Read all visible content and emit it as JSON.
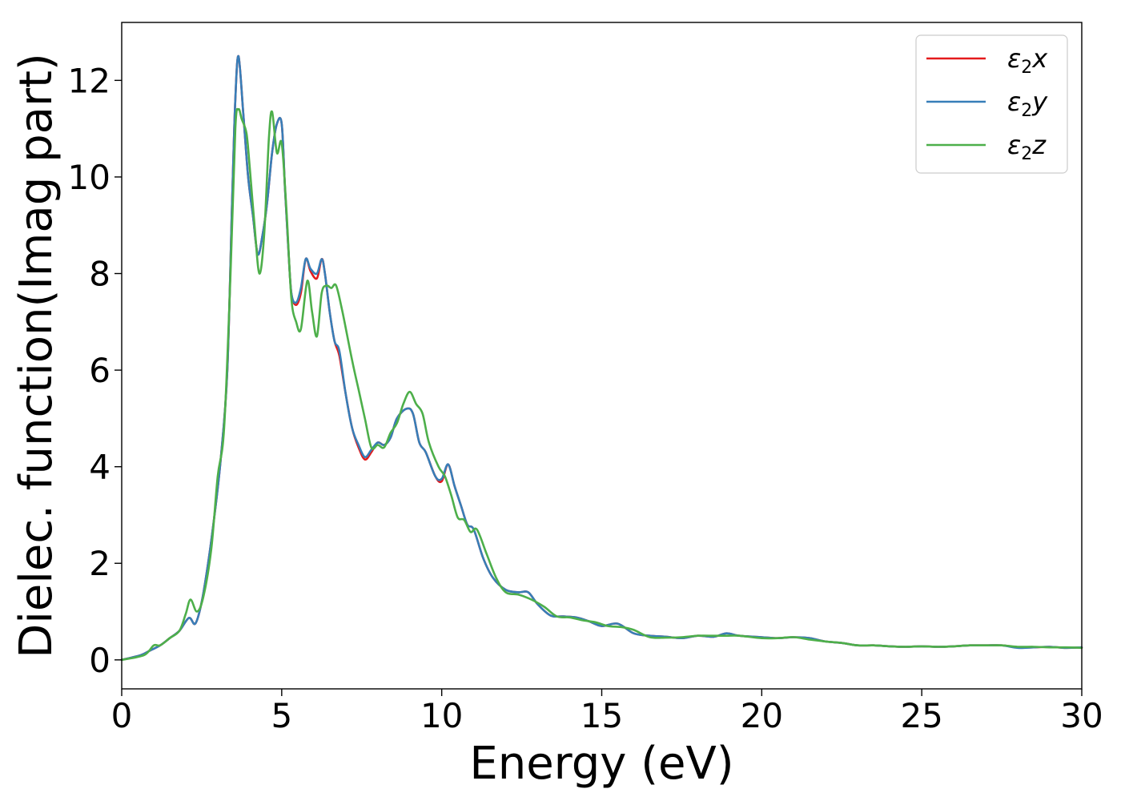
{
  "chart_data": {
    "type": "line",
    "title": "",
    "xlabel": "Energy (eV)",
    "ylabel": "Dielec. function(Imag part)",
    "xlim": [
      0,
      30
    ],
    "ylim": [
      -0.6,
      13.2
    ],
    "xticks": [
      0,
      5,
      10,
      15,
      20,
      25,
      30
    ],
    "yticks": [
      0,
      2,
      4,
      6,
      8,
      10,
      12
    ],
    "grid": false,
    "legend_position": "top-right",
    "series": [
      {
        "name": "ε₂x",
        "legend_base": "ε",
        "legend_sub": "2",
        "legend_suffix": "x",
        "color": "#e41a1c",
        "x": [
          0,
          0.6,
          0.9,
          1.2,
          1.5,
          1.8,
          2.1,
          2.3,
          2.5,
          2.7,
          2.9,
          3.1,
          3.3,
          3.45,
          3.55,
          3.65,
          3.8,
          3.95,
          4.1,
          4.25,
          4.4,
          4.55,
          4.7,
          4.85,
          5.0,
          5.1,
          5.2,
          5.3,
          5.45,
          5.6,
          5.75,
          5.9,
          6.1,
          6.25,
          6.35,
          6.5,
          6.65,
          6.8,
          7.0,
          7.2,
          7.4,
          7.6,
          7.8,
          8.0,
          8.2,
          8.4,
          8.6,
          8.9,
          9.1,
          9.3,
          9.5,
          9.8,
          10.0,
          10.2,
          10.4,
          10.6,
          10.8,
          11.0,
          11.3,
          11.6,
          12.0,
          12.4,
          12.7,
          13.0,
          13.4,
          13.8,
          14.2,
          14.6,
          15.0,
          15.5,
          16.0,
          16.5,
          17.0,
          17.5,
          18.0,
          18.5,
          18.9,
          19.3,
          20.0,
          20.5,
          21.0,
          21.5,
          22.0,
          22.5,
          23.0,
          23.5,
          24.0,
          24.5,
          25.0,
          25.5,
          26.0,
          26.5,
          27.0,
          27.5,
          28.0,
          28.5,
          29.0,
          29.5,
          30.0
        ],
        "values": [
          0.0,
          0.1,
          0.2,
          0.3,
          0.45,
          0.6,
          0.87,
          0.75,
          1.2,
          2.0,
          3.0,
          4.2,
          6.0,
          9.5,
          11.6,
          12.5,
          11.3,
          10.0,
          9.2,
          8.4,
          8.8,
          9.5,
          10.5,
          11.1,
          11.1,
          9.8,
          8.6,
          7.6,
          7.35,
          7.6,
          8.3,
          8.05,
          7.9,
          8.3,
          8.0,
          7.2,
          6.6,
          6.3,
          5.5,
          4.8,
          4.4,
          4.15,
          4.3,
          4.5,
          4.45,
          4.6,
          5.0,
          5.2,
          5.1,
          4.5,
          4.3,
          3.8,
          3.7,
          4.05,
          3.6,
          3.2,
          2.8,
          2.7,
          2.1,
          1.7,
          1.45,
          1.4,
          1.4,
          1.15,
          0.92,
          0.9,
          0.88,
          0.8,
          0.7,
          0.75,
          0.55,
          0.5,
          0.48,
          0.45,
          0.5,
          0.48,
          0.55,
          0.5,
          0.47,
          0.45,
          0.47,
          0.45,
          0.38,
          0.35,
          0.3,
          0.3,
          0.28,
          0.27,
          0.28,
          0.27,
          0.28,
          0.3,
          0.3,
          0.3,
          0.26,
          0.26,
          0.27,
          0.25,
          0.26
        ]
      },
      {
        "name": "ε₂y",
        "legend_base": "ε",
        "legend_sub": "2",
        "legend_suffix": "y",
        "color": "#377eb8",
        "x": [
          0,
          0.6,
          0.9,
          1.2,
          1.5,
          1.8,
          2.1,
          2.3,
          2.5,
          2.7,
          2.9,
          3.1,
          3.3,
          3.45,
          3.55,
          3.65,
          3.8,
          3.95,
          4.1,
          4.25,
          4.4,
          4.55,
          4.7,
          4.85,
          5.0,
          5.1,
          5.2,
          5.3,
          5.45,
          5.6,
          5.75,
          5.9,
          6.1,
          6.25,
          6.35,
          6.5,
          6.65,
          6.8,
          7.0,
          7.2,
          7.4,
          7.6,
          7.8,
          8.0,
          8.2,
          8.4,
          8.6,
          8.9,
          9.1,
          9.3,
          9.5,
          9.8,
          10.0,
          10.2,
          10.4,
          10.6,
          10.8,
          11.0,
          11.3,
          11.6,
          12.0,
          12.4,
          12.7,
          13.0,
          13.4,
          13.8,
          14.2,
          14.6,
          15.0,
          15.5,
          16.0,
          16.5,
          17.0,
          17.5,
          18.0,
          18.5,
          18.9,
          19.3,
          20.0,
          20.5,
          21.0,
          21.5,
          22.0,
          22.5,
          23.0,
          23.5,
          24.0,
          24.5,
          25.0,
          25.5,
          26.0,
          26.5,
          27.0,
          27.5,
          28.0,
          28.5,
          29.0,
          29.5,
          30.0
        ],
        "values": [
          0.0,
          0.1,
          0.2,
          0.3,
          0.45,
          0.6,
          0.87,
          0.75,
          1.2,
          2.0,
          3.0,
          4.2,
          6.0,
          9.5,
          11.6,
          12.5,
          11.3,
          10.0,
          9.2,
          8.4,
          8.8,
          9.5,
          10.5,
          11.1,
          11.1,
          9.8,
          8.6,
          7.6,
          7.4,
          7.7,
          8.3,
          8.1,
          8.0,
          8.3,
          8.0,
          7.2,
          6.6,
          6.4,
          5.5,
          4.8,
          4.45,
          4.2,
          4.35,
          4.5,
          4.45,
          4.6,
          5.0,
          5.2,
          5.1,
          4.5,
          4.3,
          3.8,
          3.75,
          4.05,
          3.6,
          3.2,
          2.8,
          2.7,
          2.1,
          1.7,
          1.45,
          1.4,
          1.4,
          1.15,
          0.92,
          0.9,
          0.88,
          0.8,
          0.7,
          0.75,
          0.55,
          0.5,
          0.48,
          0.45,
          0.5,
          0.48,
          0.55,
          0.5,
          0.47,
          0.45,
          0.47,
          0.45,
          0.38,
          0.35,
          0.3,
          0.3,
          0.28,
          0.27,
          0.28,
          0.27,
          0.28,
          0.3,
          0.3,
          0.3,
          0.25,
          0.26,
          0.27,
          0.25,
          0.26
        ]
      },
      {
        "name": "ε₂z",
        "legend_base": "ε",
        "legend_sub": "2",
        "legend_suffix": "z",
        "color": "#4daf4a",
        "x": [
          0,
          0.7,
          1.0,
          1.2,
          1.5,
          1.8,
          2.0,
          2.15,
          2.35,
          2.55,
          2.8,
          3.0,
          3.2,
          3.4,
          3.55,
          3.65,
          3.75,
          3.9,
          4.0,
          4.15,
          4.3,
          4.45,
          4.6,
          4.7,
          4.85,
          5.0,
          5.15,
          5.3,
          5.45,
          5.6,
          5.8,
          5.95,
          6.1,
          6.25,
          6.4,
          6.55,
          6.7,
          6.9,
          7.2,
          7.4,
          7.6,
          7.8,
          8.0,
          8.2,
          8.4,
          8.6,
          8.8,
          9.0,
          9.2,
          9.4,
          9.6,
          9.9,
          10.1,
          10.3,
          10.5,
          10.7,
          10.9,
          11.1,
          11.4,
          11.7,
          12.0,
          12.4,
          12.8,
          13.2,
          13.6,
          14.0,
          14.4,
          14.8,
          15.2,
          15.6,
          16.0,
          16.5,
          17.0,
          17.5,
          18.0,
          18.5,
          18.9,
          19.3,
          20.0,
          20.5,
          21.0,
          21.5,
          22.0,
          22.5,
          23.0,
          23.5,
          24.0,
          24.5,
          25.0,
          25.5,
          26.0,
          26.5,
          27.0,
          27.5,
          28.0,
          28.5,
          29.0,
          29.5,
          30.0
        ],
        "values": [
          0.0,
          0.1,
          0.3,
          0.3,
          0.45,
          0.6,
          0.95,
          1.25,
          1.0,
          1.3,
          2.3,
          3.8,
          4.8,
          8.0,
          11.0,
          11.4,
          11.2,
          10.9,
          10.2,
          9.0,
          8.0,
          8.8,
          10.8,
          11.35,
          10.5,
          10.7,
          9.3,
          7.5,
          7.0,
          6.85,
          7.85,
          7.2,
          6.7,
          7.6,
          7.75,
          7.7,
          7.75,
          7.2,
          6.2,
          5.6,
          5.0,
          4.4,
          4.45,
          4.4,
          4.7,
          4.9,
          5.3,
          5.55,
          5.3,
          5.1,
          4.5,
          4.0,
          3.8,
          3.4,
          2.95,
          2.9,
          2.65,
          2.7,
          2.2,
          1.7,
          1.4,
          1.35,
          1.25,
          1.1,
          0.9,
          0.88,
          0.82,
          0.78,
          0.7,
          0.68,
          0.62,
          0.47,
          0.46,
          0.47,
          0.5,
          0.5,
          0.5,
          0.5,
          0.45,
          0.45,
          0.47,
          0.42,
          0.38,
          0.35,
          0.3,
          0.3,
          0.28,
          0.27,
          0.28,
          0.27,
          0.28,
          0.3,
          0.3,
          0.3,
          0.27,
          0.27,
          0.26,
          0.26,
          0.25
        ]
      }
    ]
  }
}
